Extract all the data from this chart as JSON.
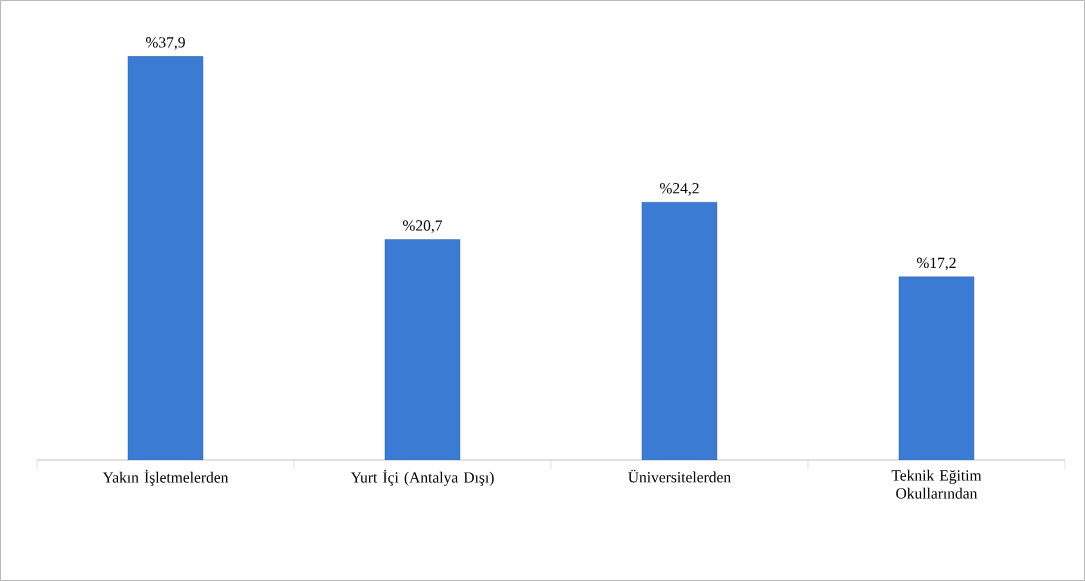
{
  "chart_data": {
    "type": "bar",
    "categories": [
      "Yakın İşletmelerden",
      "Yurt İçi (Antalya Dışı)",
      "Üniversitelerden",
      "Teknik Eğitim Okullarından"
    ],
    "values": [
      37.9,
      20.7,
      24.2,
      17.2
    ],
    "value_labels": [
      "%37,9",
      "%20,7",
      "%24,2",
      "%17,2"
    ],
    "color": "#3b7bd4"
  }
}
